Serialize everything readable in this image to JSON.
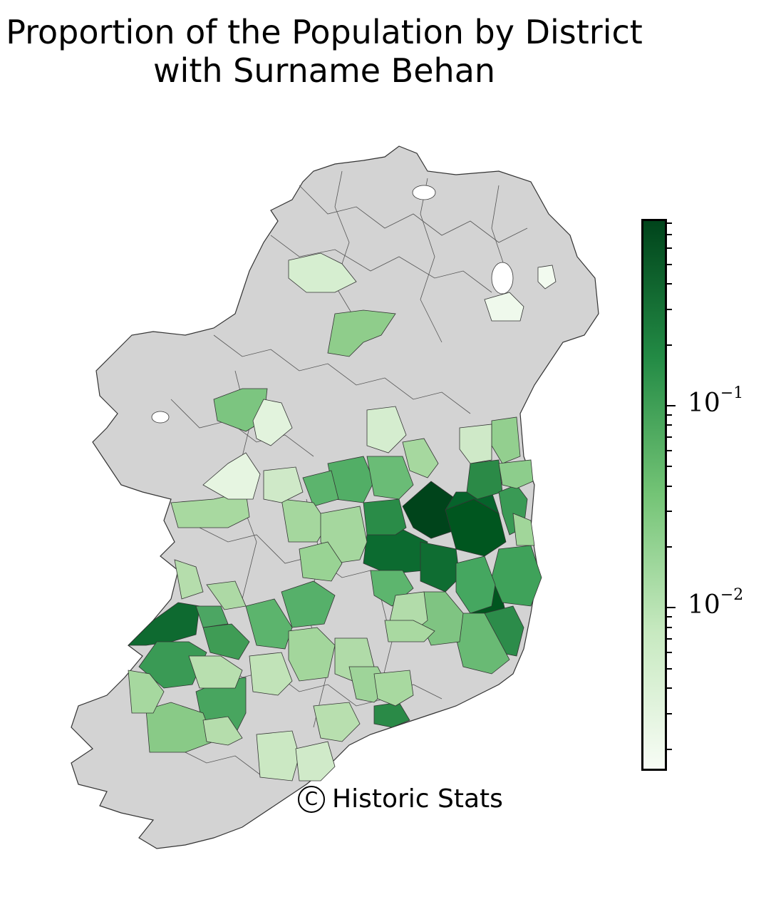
{
  "title_line1": "Proportion of the Population by District",
  "title_line2": "with Surname Behan",
  "credit": {
    "symbol": "C",
    "text": "Historic Stats"
  },
  "colorbar": {
    "scale": "log",
    "colormap": [
      "#f7fcf5",
      "#c7e9c0",
      "#74c476",
      "#238b45",
      "#00441b"
    ],
    "range": [
      0.0016,
      0.82
    ],
    "major_ticks": [
      {
        "value": 0.1,
        "base": "10",
        "exponent": "−1"
      },
      {
        "value": 0.01,
        "base": "10",
        "exponent": "−2"
      }
    ],
    "minor_ticks": [
      0.002,
      0.003,
      0.004,
      0.005,
      0.006,
      0.007,
      0.008,
      0.009,
      0.02,
      0.03,
      0.04,
      0.05,
      0.06,
      0.07,
      0.08,
      0.09,
      0.2,
      0.3,
      0.4,
      0.5,
      0.6,
      0.7,
      0.8
    ]
  },
  "no_data_color": "#d3d3d3",
  "map_data": {
    "type": "choropleth",
    "region": "Ireland",
    "unit": "District"
  }
}
